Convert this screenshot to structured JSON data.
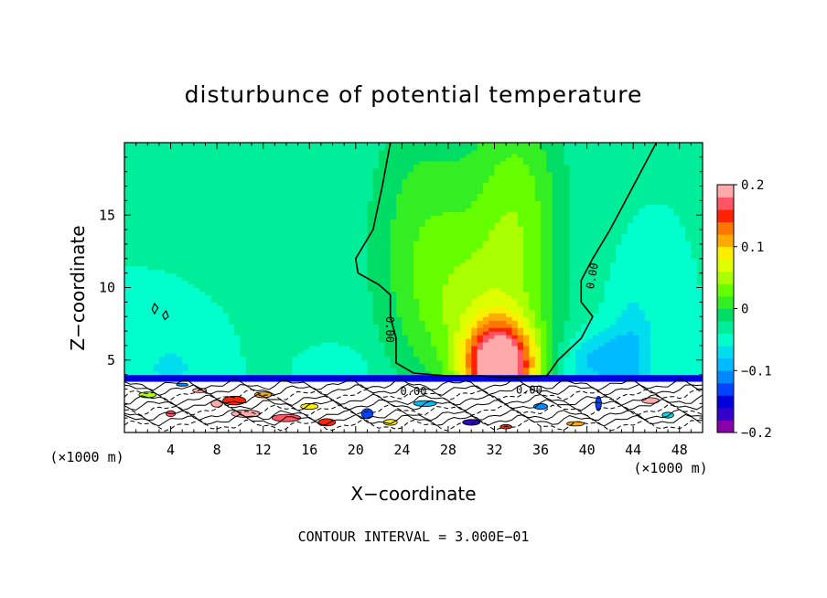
{
  "chart_data": {
    "type": "heatmap",
    "title": "disturbunce of potential temperature",
    "xlabel": "X−coordinate",
    "ylabel": "Z−coordinate",
    "x_unit": "(×1000 m)",
    "y_unit": "(×1000 m)",
    "xlim": [
      0,
      50
    ],
    "ylim": [
      0,
      20
    ],
    "x_ticks": [
      4,
      8,
      12,
      16,
      20,
      24,
      28,
      32,
      36,
      40,
      44,
      48
    ],
    "y_ticks": [
      5,
      10,
      15
    ],
    "colorbar": {
      "min": -0.2,
      "max": 0.2,
      "levels": 20,
      "tick_values": [
        0.2,
        0.1,
        0,
        -0.1,
        -0.2
      ],
      "tick_labels": [
        "0.2",
        "0.1",
        "0",
        "−0.1",
        "−0.2"
      ],
      "colors": [
        "#8800aa",
        "#3300cc",
        "#0000dd",
        "#0044ff",
        "#0088ff",
        "#00bbff",
        "#00ddee",
        "#00ffcc",
        "#00ee99",
        "#00dd66",
        "#33ee22",
        "#66ff00",
        "#aaff00",
        "#ddff00",
        "#ffee00",
        "#ffaa00",
        "#ff7700",
        "#ff2200",
        "#ff5566",
        "#ffaaaa"
      ]
    },
    "contour_labels": [
      "0.00",
      "0.00",
      "0.00",
      "0.00"
    ],
    "contour_interval_text": "CONTOUR INTERVAL = 3.000E−01"
  }
}
